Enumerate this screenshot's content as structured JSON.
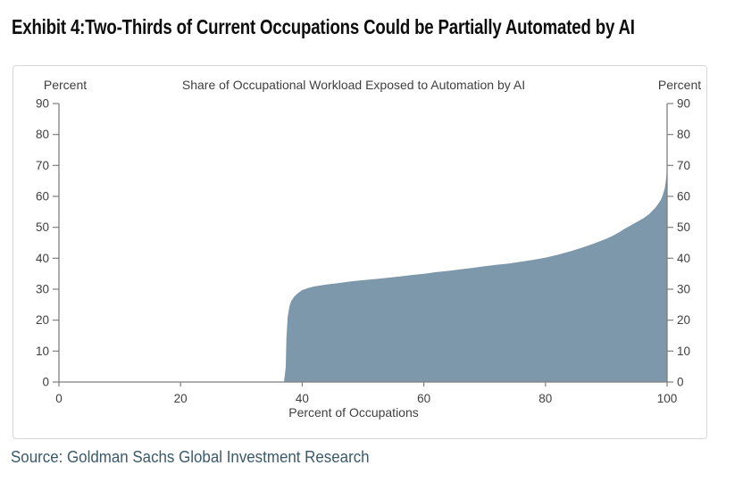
{
  "page": {
    "title": "Exhibit 4:Two-Thirds of Current Occupations Could be Partially Automated by AI",
    "source": "Source: Goldman Sachs Global Investment Research"
  },
  "chart_data": {
    "type": "area",
    "title": "Share of Occupational Workload Exposed to Automation by AI",
    "xlabel": "Percent of Occupations",
    "left_axis_title": "Percent",
    "right_axis_title": "Percent",
    "series_name": "Share of occupational workload exposed to automation by AI",
    "xlim": [
      0,
      100
    ],
    "ylim": [
      0,
      90
    ],
    "xticks": [
      0,
      20,
      40,
      60,
      80,
      100
    ],
    "yticks": [
      0,
      10,
      20,
      30,
      40,
      50,
      60,
      70,
      80,
      90
    ],
    "grid": false,
    "legend": null,
    "colors": {
      "area_fill": "#7D97AB",
      "axis": "#7f7f7f",
      "tick_label": "#3f3f3f",
      "panel_border": "#d8d8d8",
      "source_text": "#3b5968",
      "title_text": "#0d0d0d"
    },
    "points": [
      [
        0,
        0
      ],
      [
        37,
        0
      ],
      [
        37.3,
        5
      ],
      [
        37.4,
        14
      ],
      [
        37.6,
        21
      ],
      [
        37.9,
        24.5
      ],
      [
        38.2,
        26.2
      ],
      [
        38.7,
        27.6
      ],
      [
        39.2,
        28.6
      ],
      [
        40,
        29.7
      ],
      [
        41,
        30.4
      ],
      [
        42,
        30.9
      ],
      [
        44,
        31.5
      ],
      [
        46,
        32
      ],
      [
        48,
        32.5
      ],
      [
        50,
        32.9
      ],
      [
        52,
        33.3
      ],
      [
        54,
        33.7
      ],
      [
        56,
        34.1
      ],
      [
        58,
        34.6
      ],
      [
        60,
        35
      ],
      [
        62,
        35.5
      ],
      [
        64,
        35.9
      ],
      [
        66,
        36.4
      ],
      [
        68,
        36.9
      ],
      [
        70,
        37.4
      ],
      [
        72,
        37.9
      ],
      [
        74,
        38.3
      ],
      [
        76,
        38.9
      ],
      [
        78,
        39.5
      ],
      [
        80,
        40.2
      ],
      [
        82,
        41.1
      ],
      [
        84,
        42.2
      ],
      [
        86,
        43.4
      ],
      [
        88,
        44.8
      ],
      [
        90,
        46.3
      ],
      [
        91,
        47.2
      ],
      [
        92,
        48.3
      ],
      [
        93,
        49.5
      ],
      [
        94,
        50.6
      ],
      [
        95,
        51.7
      ],
      [
        96,
        52.8
      ],
      [
        97,
        54.2
      ],
      [
        98,
        56.2
      ],
      [
        98.5,
        57.5
      ],
      [
        99,
        59
      ],
      [
        99.3,
        60.5
      ],
      [
        99.6,
        62.5
      ],
      [
        99.8,
        65
      ],
      [
        100,
        68.8
      ]
    ]
  }
}
